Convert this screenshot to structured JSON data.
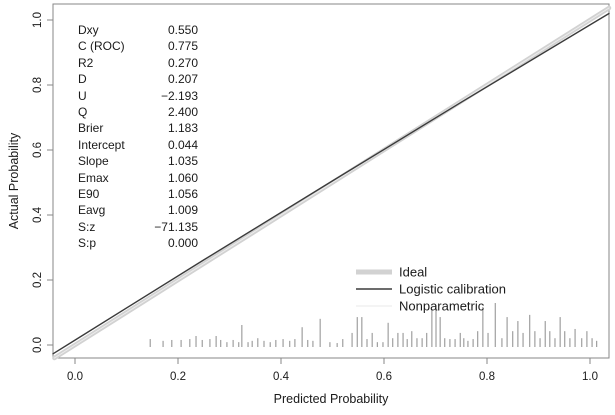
{
  "chart_data": {
    "type": "line",
    "title": "",
    "xlabel": "Predicted Probability",
    "ylabel": "Actual Probability",
    "xlim": [
      0.0,
      1.0
    ],
    "ylim": [
      0.0,
      1.0
    ],
    "x_ticks": [
      {
        "v": 0.0,
        "label": "0.0"
      },
      {
        "v": 0.2,
        "label": "0.2"
      },
      {
        "v": 0.4,
        "label": "0.4"
      },
      {
        "v": 0.6,
        "label": "0.6"
      },
      {
        "v": 0.8,
        "label": "0.8"
      },
      {
        "v": 1.0,
        "label": "1.0"
      }
    ],
    "y_ticks": [
      {
        "v": 0.0,
        "label": "0.0"
      },
      {
        "v": 0.2,
        "label": "0.2"
      },
      {
        "v": 0.4,
        "label": "0.4"
      },
      {
        "v": 0.6,
        "label": "0.6"
      },
      {
        "v": 0.8,
        "label": "0.8"
      },
      {
        "v": 1.0,
        "label": "1.0"
      }
    ],
    "grid": false,
    "legend_position": "bottom-right",
    "legend": [
      {
        "label": "Ideal",
        "color": "#d2d2d2",
        "width": 5
      },
      {
        "label": "Logistic calibration",
        "color": "#3b3b3b",
        "width": 1.4
      },
      {
        "label": "Nonparametric",
        "color": "#ededed",
        "width": 1.2
      }
    ],
    "series": [
      {
        "name": "Ideal",
        "color": "#d2d2d2",
        "width": 4.5,
        "points": [
          [
            0,
            0
          ],
          [
            1,
            1
          ]
        ]
      },
      {
        "name": "Nonparametric",
        "color": "#ededed",
        "width": 1,
        "points": [
          [
            0,
            0
          ],
          [
            1,
            1
          ]
        ]
      },
      {
        "name": "Logistic calibration",
        "color": "#3b3b3b",
        "width": 1.4,
        "points": [
          [
            0,
            0.015
          ],
          [
            0.25,
            0.262
          ],
          [
            0.5,
            0.505
          ],
          [
            0.75,
            0.747
          ],
          [
            1,
            0.985
          ]
        ]
      }
    ],
    "stats": [
      {
        "label": "Dxy",
        "value": "0.550"
      },
      {
        "label": "C (ROC)",
        "value": "0.775"
      },
      {
        "label": "R2",
        "value": "0.270"
      },
      {
        "label": "D",
        "value": "0.207"
      },
      {
        "label": "U",
        "value": "−2.193"
      },
      {
        "label": "Q",
        "value": "2.400"
      },
      {
        "label": "Brier",
        "value": "1.183"
      },
      {
        "label": "Intercept",
        "value": "0.044"
      },
      {
        "label": "Slope",
        "value": "1.035"
      },
      {
        "label": "Emax",
        "value": "1.060"
      },
      {
        "label": "E90",
        "value": "1.056"
      },
      {
        "label": "Eavg",
        "value": "1.009"
      },
      {
        "label": "S:z",
        "value": "−71.135"
      },
      {
        "label": "S:p",
        "value": "0.000"
      }
    ],
    "rug_spikes": {
      "note": "histogram of predicted probabilities; x = predicted probability, h = relative frequency (0-1)",
      "points": [
        [
          0.146,
          0.18
        ],
        [
          0.171,
          0.14
        ],
        [
          0.188,
          0.16
        ],
        [
          0.206,
          0.16
        ],
        [
          0.223,
          0.18
        ],
        [
          0.235,
          0.25
        ],
        [
          0.247,
          0.16
        ],
        [
          0.262,
          0.18
        ],
        [
          0.274,
          0.25
        ],
        [
          0.283,
          0.16
        ],
        [
          0.295,
          0.11
        ],
        [
          0.307,
          0.16
        ],
        [
          0.318,
          0.11
        ],
        [
          0.324,
          0.5
        ],
        [
          0.336,
          0.11
        ],
        [
          0.344,
          0.14
        ],
        [
          0.355,
          0.2
        ],
        [
          0.367,
          0.14
        ],
        [
          0.379,
          0.11
        ],
        [
          0.39,
          0.16
        ],
        [
          0.404,
          0.18
        ],
        [
          0.417,
          0.14
        ],
        [
          0.427,
          0.18
        ],
        [
          0.441,
          0.45
        ],
        [
          0.452,
          0.16
        ],
        [
          0.462,
          0.14
        ],
        [
          0.476,
          0.64
        ],
        [
          0.495,
          0.11
        ],
        [
          0.509,
          0.09
        ],
        [
          0.52,
          0.18
        ],
        [
          0.538,
          0.32
        ],
        [
          0.548,
          0.68
        ],
        [
          0.557,
          0.68
        ],
        [
          0.567,
          0.18
        ],
        [
          0.577,
          0.32
        ],
        [
          0.587,
          0.11
        ],
        [
          0.598,
          0.11
        ],
        [
          0.608,
          0.55
        ],
        [
          0.617,
          0.2
        ],
        [
          0.627,
          0.32
        ],
        [
          0.637,
          0.32
        ],
        [
          0.645,
          0.18
        ],
        [
          0.654,
          0.36
        ],
        [
          0.664,
          0.2
        ],
        [
          0.674,
          0.2
        ],
        [
          0.683,
          0.32
        ],
        [
          0.693,
          0.86
        ],
        [
          0.701,
          0.95
        ],
        [
          0.709,
          0.68
        ],
        [
          0.718,
          0.2
        ],
        [
          0.728,
          0.18
        ],
        [
          0.738,
          0.18
        ],
        [
          0.748,
          0.32
        ],
        [
          0.755,
          0.2
        ],
        [
          0.763,
          0.14
        ],
        [
          0.773,
          0.18
        ],
        [
          0.782,
          0.36
        ],
        [
          0.792,
          0.91
        ],
        [
          0.802,
          0.32
        ],
        [
          0.816,
          1.0
        ],
        [
          0.829,
          0.2
        ],
        [
          0.839,
          0.68
        ],
        [
          0.85,
          0.36
        ],
        [
          0.86,
          0.59
        ],
        [
          0.87,
          0.32
        ],
        [
          0.883,
          0.73
        ],
        [
          0.893,
          0.36
        ],
        [
          0.903,
          0.2
        ],
        [
          0.913,
          0.59
        ],
        [
          0.922,
          0.36
        ],
        [
          0.932,
          0.2
        ],
        [
          0.942,
          0.68
        ],
        [
          0.951,
          0.36
        ],
        [
          0.961,
          0.2
        ],
        [
          0.971,
          0.41
        ],
        [
          0.984,
          0.2
        ],
        [
          0.994,
          0.36
        ],
        [
          1.004,
          0.2
        ],
        [
          1.013,
          0.14
        ]
      ]
    },
    "colors": {
      "axis": "#878787",
      "spike": "#8c8c8c",
      "text": "#1a1a1a"
    }
  }
}
